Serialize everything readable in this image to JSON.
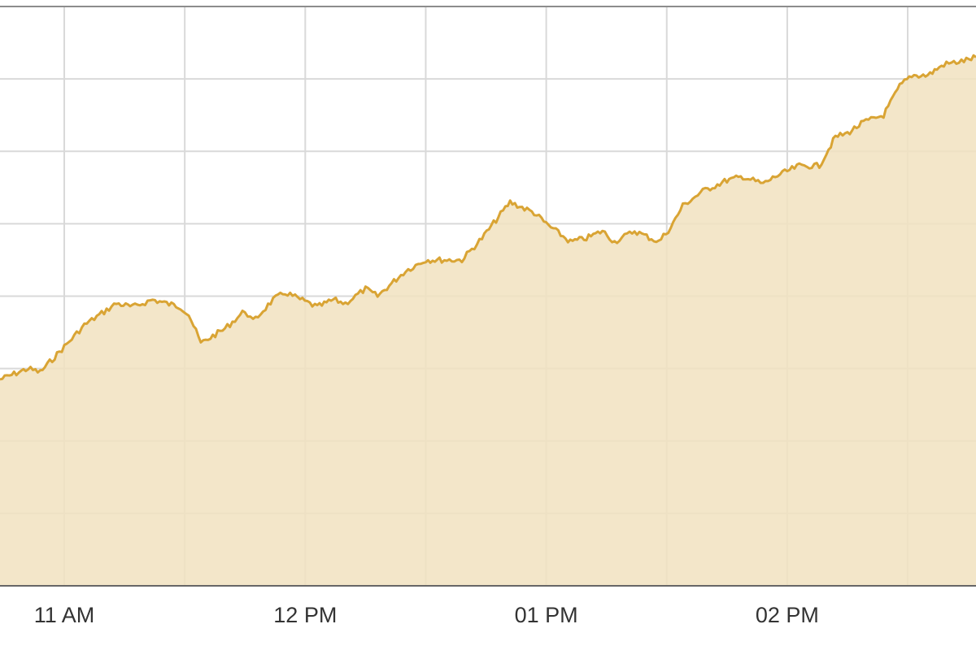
{
  "chart_data": {
    "type": "area",
    "title": "",
    "xlabel": "",
    "ylabel": "",
    "x_axis": {
      "kind": "time",
      "range": [
        "10:44",
        "14:47"
      ],
      "tick_times": [
        "11:00",
        "12:00",
        "13:00",
        "14:00"
      ],
      "tick_labels": [
        "11 AM",
        "12 PM",
        "01 PM",
        "02 PM"
      ],
      "minor_gridline_times": [
        "10:30",
        "11:30",
        "12:30",
        "13:30",
        "14:30"
      ]
    },
    "y_axis": {
      "range": [
        0,
        8
      ],
      "gridlines": [
        1,
        2,
        3,
        4,
        5,
        6,
        7
      ],
      "tick_labels_visible": false
    },
    "grid": true,
    "legend": "none",
    "colors": {
      "line": "#D9A434",
      "fill": "#F1E2BF",
      "grid": "#D9D9D9",
      "axis": "#666666",
      "frame": "#8C8C8C"
    },
    "series": [
      {
        "x": [
          "10:44",
          "10:51",
          "10:54",
          "11:00",
          "11:05",
          "11:13",
          "11:17",
          "11:22",
          "11:29",
          "11:31",
          "11:34",
          "11:40",
          "11:45",
          "11:47",
          "11:52",
          "11:55",
          "12:03",
          "12:07",
          "12:10",
          "12:15",
          "12:18",
          "12:25",
          "12:30",
          "12:34",
          "12:39",
          "12:44",
          "12:51",
          "12:57",
          "13:00",
          "13:06",
          "13:10",
          "13:14",
          "13:17",
          "13:22",
          "13:28",
          "13:31",
          "13:34",
          "13:39",
          "13:45",
          "13:49",
          "13:54",
          "13:57",
          "14:03",
          "14:08",
          "14:12",
          "14:15",
          "14:19",
          "14:24",
          "14:28",
          "14:31",
          "14:35",
          "14:39",
          "14:44",
          "14:47"
        ],
        "y": [
          2.85,
          3.0,
          2.95,
          3.3,
          3.6,
          3.9,
          3.85,
          3.95,
          3.85,
          3.75,
          3.35,
          3.55,
          3.8,
          3.65,
          3.95,
          4.05,
          3.85,
          3.95,
          3.9,
          4.1,
          4.0,
          4.35,
          4.5,
          4.5,
          4.5,
          4.8,
          5.3,
          5.15,
          5.0,
          4.75,
          4.8,
          4.9,
          4.75,
          4.9,
          4.75,
          4.95,
          5.25,
          5.45,
          5.6,
          5.65,
          5.55,
          5.65,
          5.8,
          5.8,
          6.2,
          6.25,
          6.4,
          6.5,
          6.9,
          7.05,
          7.05,
          7.2,
          7.25,
          7.3
        ]
      }
    ]
  }
}
